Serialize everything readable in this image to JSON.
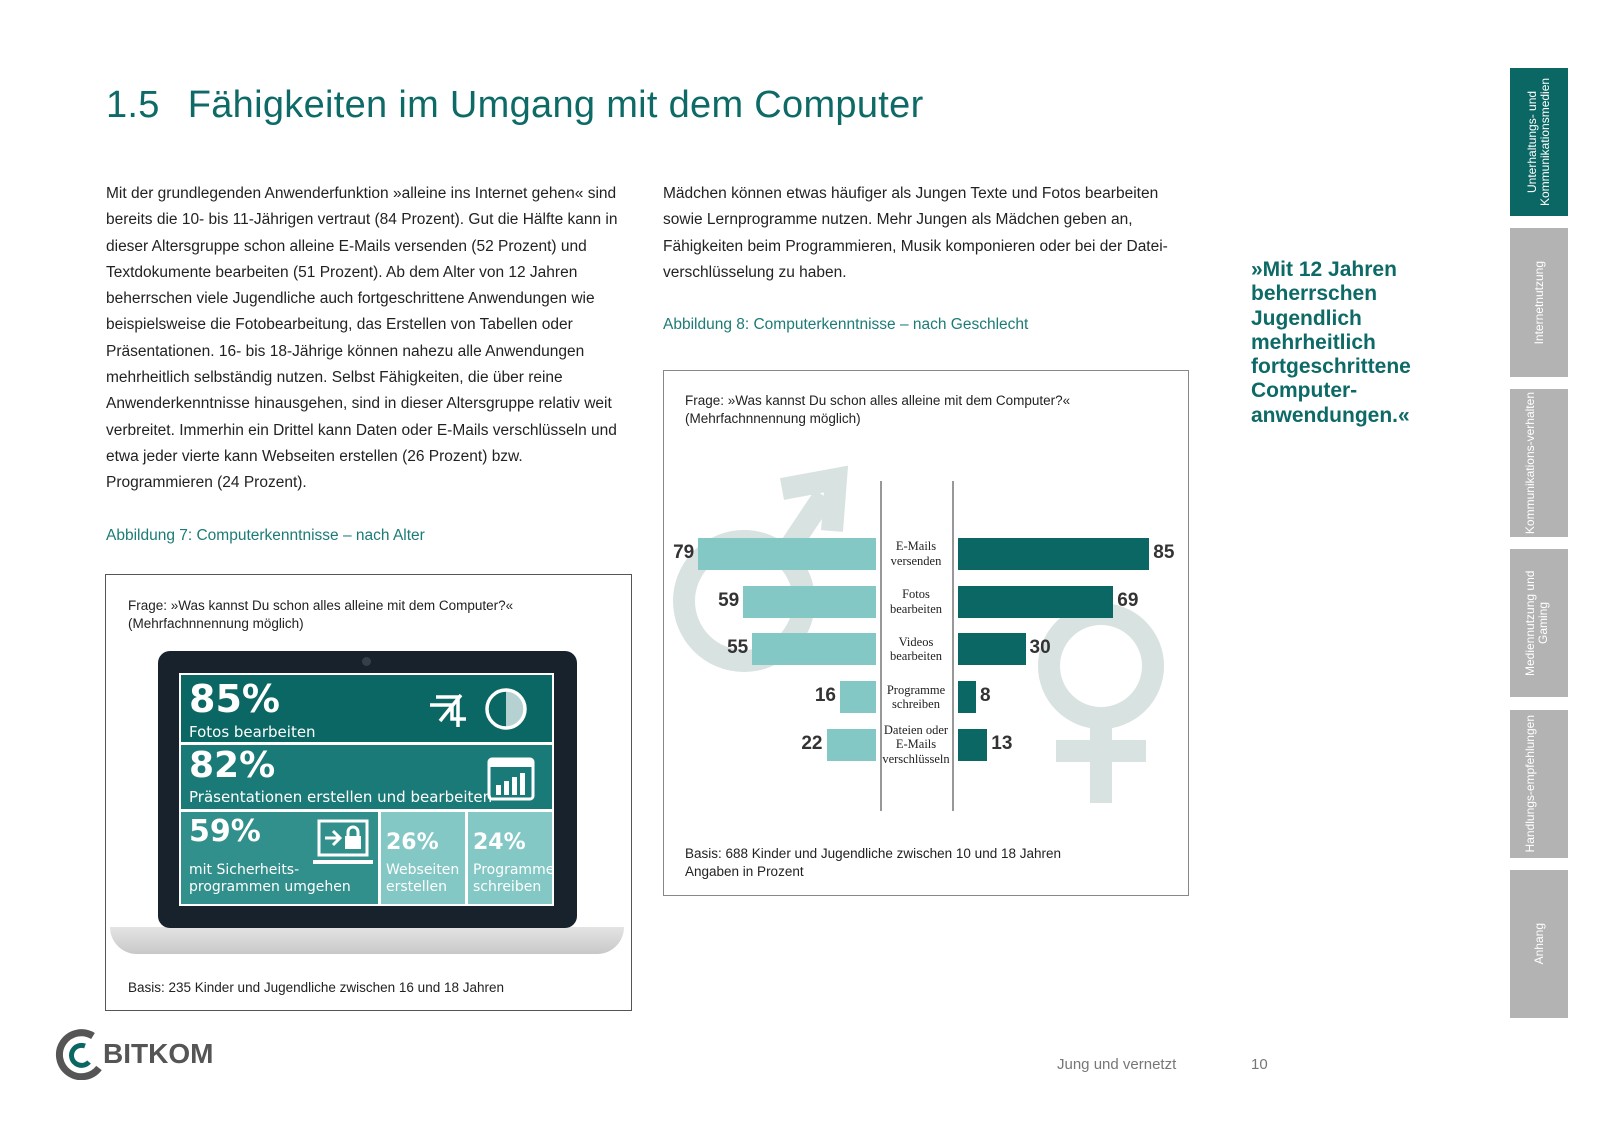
{
  "title": {
    "number": "1.5",
    "text": "Fähigkeiten im Umgang mit dem Computer"
  },
  "col1": "Mit der grundlegenden Anwenderfunktion »alleine ins Internet gehen« sind bereits die 10- bis 11-Jährigen vertraut (84 Prozent). Gut die Hälfte kann in dieser Altersgruppe schon alleine E-Mails versenden (52 Prozent) und Textdokumente bearbeiten (51 Prozent). Ab dem Alter von 12 Jahren beherrschen viele Jugendliche auch fortgeschrittene Anwendungen wie beispielsweise die Fotobearbeitung, das Erstellen von Tabellen oder Präsentationen. 16- bis 18-Jährige können nahezu alle Anwendungen mehrheitlich selbständig nutzen. Selbst Fähigkeiten, die über reine Anwenderkenntnisse hinausgehen, sind in dieser Altersgruppe relativ weit verbreitet. Immerhin ein Drittel kann Daten oder E-Mails verschlüsseln und etwa jeder vierte kann Webseiten erstellen (26 Prozent) bzw. Programmieren (24 Prozent).",
  "col2": "Mädchen können etwas häufiger als Jungen Texte und Fotos bearbeiten sowie Lernprogramme nutzen. Mehr Jungen als Mädchen geben an, Fähigkeiten beim Programmieren, Musik komponieren oder bei der Datei-verschlüsselung zu haben.",
  "fig7": {
    "caption": "Abbildung 7: Computerkenntnisse – nach Alter",
    "question": "Frage: »Was kannst Du schon alles alleine mit dem Computer?«",
    "note": "(Mehrfachnnennung möglich)",
    "basis": "Basis: 235 Kinder und Jugendliche zwischen 16 und 18 Jahren",
    "tiles": [
      {
        "pct": "85%",
        "label": "Fotos bearbeiten"
      },
      {
        "pct": "82%",
        "label": "Präsentationen erstellen und bearbeiten"
      },
      {
        "pct": "59%",
        "label": "mit Sicherheits-\nprogrammen umgehen"
      },
      {
        "pct": "26%",
        "label": "Webseiten erstellen"
      },
      {
        "pct": "24%",
        "label": "Programme schreiben"
      }
    ]
  },
  "fig8": {
    "caption": "Abbildung 8: Computerkenntnisse – nach Geschlecht",
    "question": "Frage: »Was kannst Du schon alles alleine mit dem Computer?«",
    "note": "(Mehrfachnnennung möglich)",
    "basis": "Basis: 688 Kinder und Jugendliche zwischen 10 und 18 Jahren",
    "unit": "Angaben in Prozent"
  },
  "chart_data": {
    "type": "bar",
    "orientation": "horizontal-butterfly",
    "categories": [
      "E-Mails versenden",
      "Fotos bearbeiten",
      "Videos bearbeiten",
      "Programme schreiben",
      "Dateien oder E-Mails verschlüsseln"
    ],
    "series": [
      {
        "name": "Jungen",
        "color": "#84c8c6",
        "values": [
          79,
          59,
          55,
          16,
          22
        ]
      },
      {
        "name": "Mädchen",
        "color": "#0b6764",
        "values": [
          85,
          69,
          30,
          8,
          13
        ]
      }
    ]
  },
  "tabs": [
    "Unterhaltungs- und Kommunikationsmedien",
    "Internetnutzung",
    "Kommunikations-verhalten",
    "Mediennutzung und Gaming",
    "Handlungs-empfehlungen",
    "Anhang"
  ],
  "quote": "»Mit 12 Jahren beherrschen Jugendlich mehrheitlich fortgeschrittene Computer-anwendungen.«",
  "footer": {
    "logo": "BITKOM",
    "publication": "Jung und vernetzt",
    "page": "10"
  },
  "colors": {
    "dark": "#0b6764",
    "mid": "#318f8c",
    "light": "#84c8c6"
  }
}
